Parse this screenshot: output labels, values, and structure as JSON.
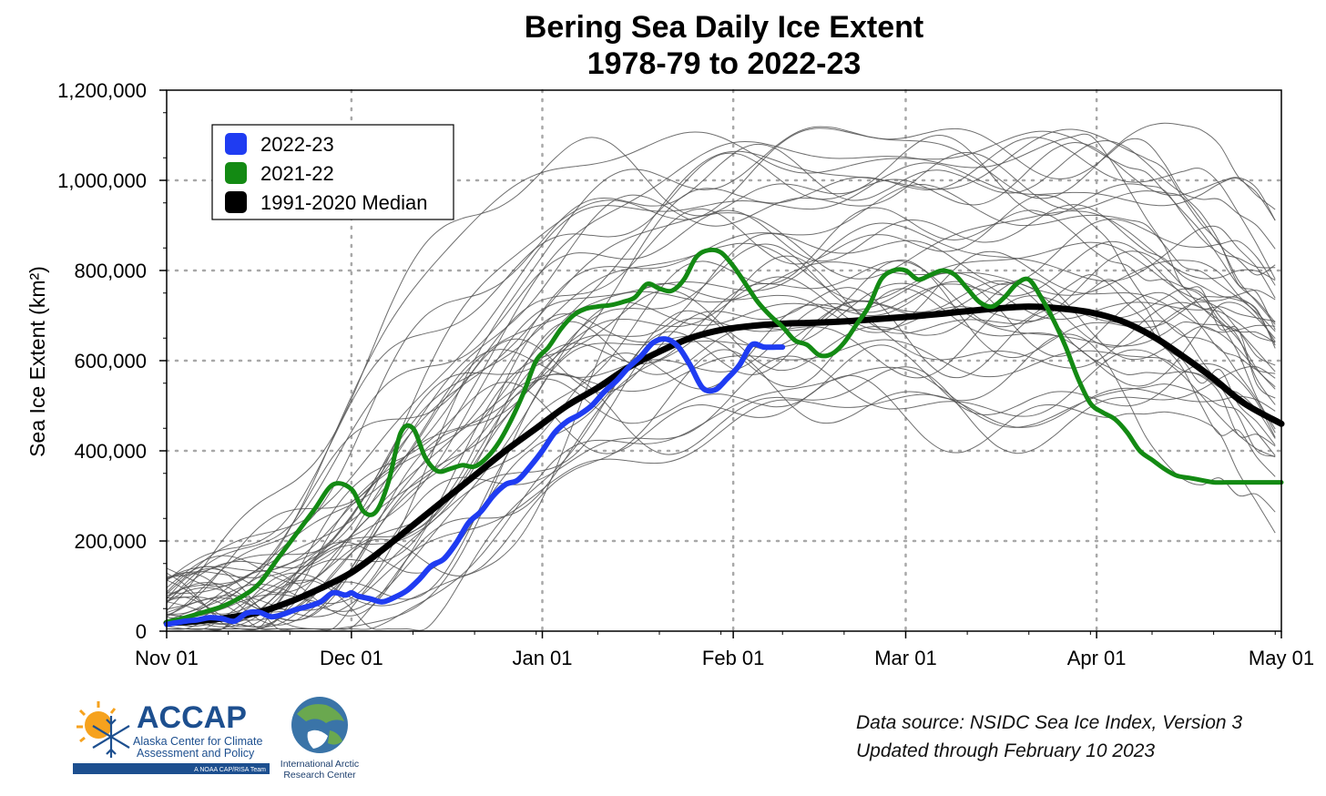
{
  "chart_data": {
    "type": "line",
    "title": "Bering Sea Daily Ice Extent",
    "subtitle": "1978-79 to 2022-23",
    "ylabel": "Sea Ice Extent (km²)",
    "xlabel": "",
    "ylim": [
      0,
      1200000
    ],
    "xlim": [
      0,
      181
    ],
    "grid": true,
    "legend_position": "top-left",
    "x_ticks": [
      {
        "day": 0,
        "label": "Nov 01"
      },
      {
        "day": 30,
        "label": "Dec 01"
      },
      {
        "day": 61,
        "label": "Jan 01"
      },
      {
        "day": 92,
        "label": "Feb 01"
      },
      {
        "day": 120,
        "label": "Mar 01"
      },
      {
        "day": 151,
        "label": "Apr 01"
      },
      {
        "day": 181,
        "label": "May 01"
      }
    ],
    "y_ticks": [
      {
        "value": 0,
        "label": "0"
      },
      {
        "value": 200000,
        "label": "200,000"
      },
      {
        "value": 400000,
        "label": "400,000"
      },
      {
        "value": 600000,
        "label": "600,000"
      },
      {
        "value": 800000,
        "label": "800,000"
      },
      {
        "value": 1000000,
        "label": "1,000,000"
      },
      {
        "value": 1200000,
        "label": "1,200,000"
      }
    ],
    "series": [
      {
        "name": "2022-23",
        "color": "#1f3cf2",
        "x": [
          0,
          3,
          5,
          7,
          9,
          11,
          13,
          15,
          17,
          19,
          21,
          23,
          25,
          27,
          29,
          30,
          31,
          33,
          35,
          37,
          39,
          41,
          43,
          45,
          47,
          49,
          51,
          53,
          55,
          57,
          59,
          61,
          63,
          65,
          67,
          69,
          71,
          73,
          75,
          77,
          79,
          81,
          83,
          85,
          87,
          89,
          91,
          93,
          95,
          97,
          99,
          100
        ],
        "values": [
          15000,
          22000,
          25000,
          30000,
          28000,
          22000,
          40000,
          42000,
          32000,
          38000,
          48000,
          55000,
          65000,
          85000,
          80000,
          85000,
          78000,
          72000,
          65000,
          75000,
          90000,
          115000,
          145000,
          160000,
          195000,
          240000,
          265000,
          300000,
          325000,
          335000,
          365000,
          400000,
          440000,
          465000,
          480000,
          500000,
          530000,
          555000,
          585000,
          610000,
          640000,
          648000,
          632000,
          590000,
          540000,
          535000,
          560000,
          590000,
          635000,
          630000,
          630000,
          630000
        ]
      },
      {
        "name": "2021-22",
        "color": "#138a13",
        "x": [
          0,
          3,
          6,
          9,
          12,
          15,
          18,
          21,
          24,
          27,
          30,
          32,
          34,
          36,
          38,
          40,
          42,
          44,
          46,
          48,
          50,
          52,
          54,
          56,
          58,
          60,
          62,
          64,
          66,
          68,
          70,
          72,
          74,
          76,
          78,
          80,
          82,
          84,
          86,
          88,
          90,
          92,
          94,
          96,
          98,
          100,
          102,
          104,
          106,
          108,
          110,
          112,
          114,
          116,
          118,
          120,
          122,
          124,
          126,
          128,
          130,
          132,
          134,
          136,
          138,
          140,
          142,
          144,
          146,
          148,
          150,
          152,
          154,
          156,
          158,
          160,
          162,
          164,
          166,
          168,
          170,
          172,
          174,
          176,
          178,
          180,
          181
        ],
        "values": [
          20000,
          30000,
          42000,
          55000,
          75000,
          105000,
          160000,
          215000,
          270000,
          325000,
          315000,
          265000,
          265000,
          330000,
          440000,
          450000,
          385000,
          355000,
          360000,
          368000,
          365000,
          385000,
          420000,
          470000,
          530000,
          600000,
          630000,
          670000,
          700000,
          715000,
          720000,
          723000,
          730000,
          740000,
          770000,
          760000,
          755000,
          780000,
          830000,
          845000,
          840000,
          810000,
          770000,
          730000,
          700000,
          675000,
          645000,
          635000,
          612000,
          615000,
          640000,
          680000,
          720000,
          780000,
          800000,
          800000,
          780000,
          790000,
          800000,
          790000,
          760000,
          730000,
          720000,
          740000,
          770000,
          780000,
          740000,
          690000,
          630000,
          560000,
          505000,
          485000,
          470000,
          440000,
          400000,
          380000,
          360000,
          345000,
          340000,
          335000,
          330000,
          330000,
          330000,
          330000,
          330000,
          330000,
          330000
        ]
      },
      {
        "name": "1991-2020 Median",
        "color": "#000000",
        "x": [
          0,
          5,
          10,
          15,
          20,
          25,
          30,
          35,
          40,
          45,
          50,
          55,
          60,
          65,
          70,
          75,
          80,
          85,
          90,
          95,
          100,
          105,
          110,
          115,
          120,
          125,
          130,
          135,
          140,
          145,
          150,
          155,
          160,
          165,
          170,
          175,
          181
        ],
        "values": [
          18000,
          22000,
          30000,
          42000,
          65000,
          95000,
          130000,
          180000,
          235000,
          290000,
          345000,
          400000,
          450000,
          500000,
          540000,
          585000,
          620000,
          650000,
          668000,
          677000,
          682000,
          684000,
          687000,
          692000,
          697000,
          703000,
          710000,
          716000,
          720000,
          716000,
          707000,
          688000,
          655000,
          610000,
          560000,
          505000,
          460000
        ]
      }
    ],
    "annotations": {
      "source": "Data source: NSIDC Sea Ice Index, Version 3",
      "updated": "Updated through February 10 2023"
    }
  },
  "logos": {
    "accap_name": "ACCAP",
    "accap_line1": "Alaska Center for Climate",
    "accap_line2": "Assessment and Policy",
    "accap_tagline": "A NOAA CAP/RISA Team",
    "iarc_line1": "International Arctic",
    "iarc_line2": "Research Center"
  },
  "colors": {
    "historical": "#555555",
    "grid": "#a8a8a8",
    "accap_blue": "#1d4f8f",
    "sun_orange": "#f6a21e"
  }
}
